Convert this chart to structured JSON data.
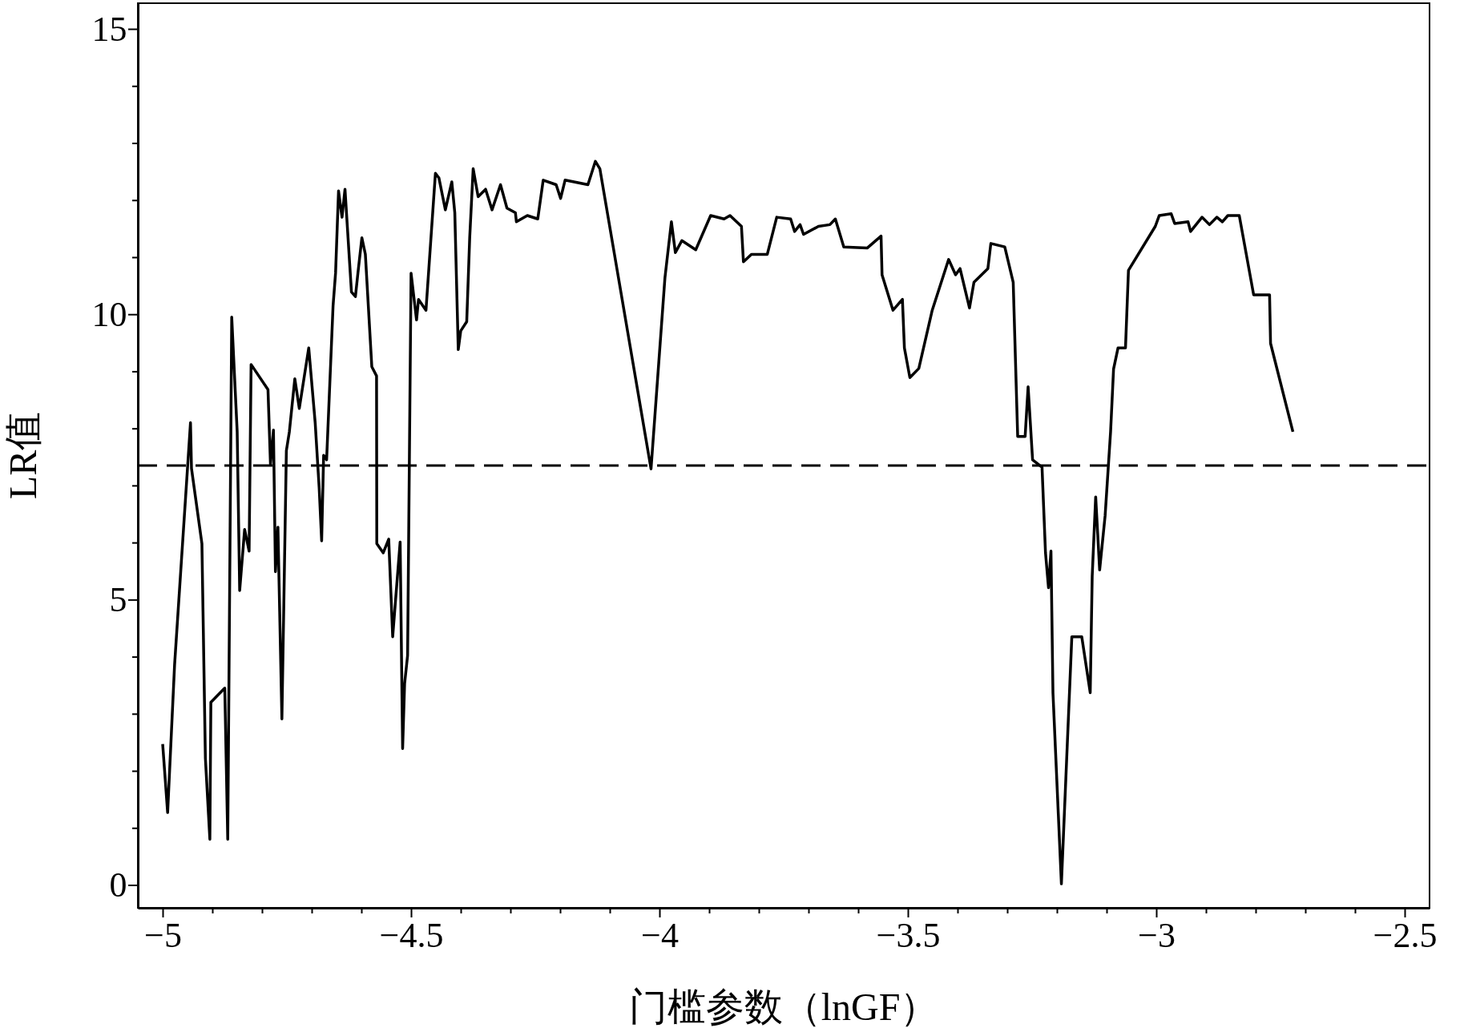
{
  "chart_data": {
    "type": "line",
    "xlabel": "门槛参数（lnGF）",
    "ylabel": "LR值",
    "xlim": [
      -5.05,
      -2.45
    ],
    "ylim": [
      -0.4,
      15.45
    ],
    "xticks": [
      {
        "value": -5,
        "label": "−5"
      },
      {
        "value": -4.9,
        "label": null
      },
      {
        "value": -4.8,
        "label": null
      },
      {
        "value": -4.7,
        "label": null
      },
      {
        "value": -4.6,
        "label": null
      },
      {
        "value": -4.5,
        "label": "−4.5"
      },
      {
        "value": -4.4,
        "label": null
      },
      {
        "value": -4.3,
        "label": null
      },
      {
        "value": -4.2,
        "label": null
      },
      {
        "value": -4.1,
        "label": null
      },
      {
        "value": -4,
        "label": "−4"
      },
      {
        "value": -3.9,
        "label": null
      },
      {
        "value": -3.8,
        "label": null
      },
      {
        "value": -3.7,
        "label": null
      },
      {
        "value": -3.6,
        "label": null
      },
      {
        "value": -3.5,
        "label": "−3.5"
      },
      {
        "value": -3.4,
        "label": null
      },
      {
        "value": -3.3,
        "label": null
      },
      {
        "value": -3.2,
        "label": null
      },
      {
        "value": -3.1,
        "label": null
      },
      {
        "value": -3,
        "label": "−3"
      },
      {
        "value": -2.9,
        "label": null
      },
      {
        "value": -2.8,
        "label": null
      },
      {
        "value": -2.7,
        "label": null
      },
      {
        "value": -2.6,
        "label": null
      },
      {
        "value": -2.5,
        "label": "−2.5"
      }
    ],
    "yticks": [
      0,
      {
        "value": 1,
        "label": null
      },
      {
        "value": 2,
        "label": null
      },
      {
        "value": 3,
        "label": null
      },
      {
        "value": 4,
        "label": null
      },
      5,
      {
        "value": 6,
        "label": null
      },
      {
        "value": 7,
        "label": null
      },
      {
        "value": 8,
        "label": null
      },
      {
        "value": 9,
        "label": null
      },
      10,
      {
        "value": 11,
        "label": null
      },
      {
        "value": 12,
        "label": null
      },
      {
        "value": 13,
        "label": null
      },
      {
        "value": 14,
        "label": null
      },
      15
    ],
    "grid": false,
    "marker": "none",
    "line_style": "solid",
    "ref_lines": [
      {
        "axis": "y",
        "value": 7.35,
        "line_style": "dashed",
        "color": "#000000"
      }
    ],
    "series": [
      {
        "color": "#000000",
        "x": [
          -5.0,
          -4.99,
          -4.976,
          -4.944,
          -4.942,
          -4.921,
          -4.914,
          -4.905,
          -4.903,
          -4.875,
          -4.869,
          -4.861,
          -4.85,
          -4.845,
          -4.835,
          -4.826,
          -4.822,
          -4.788,
          -4.783,
          -4.777,
          -4.773,
          -4.768,
          -4.76,
          -4.751,
          -4.745,
          -4.734,
          -4.725,
          -4.706,
          -4.693,
          -4.685,
          -4.68,
          -4.676,
          -4.67,
          -4.657,
          -4.652,
          -4.646,
          -4.639,
          -4.633,
          -4.62,
          -4.612,
          -4.607,
          -4.599,
          -4.592,
          -4.579,
          -4.5695,
          -4.569,
          -4.556,
          -4.545,
          -4.537,
          -4.522,
          -4.517,
          -4.513,
          -4.507,
          -4.5,
          -4.489,
          -4.485,
          -4.47,
          -4.451,
          -4.444,
          -4.431,
          -4.418,
          -4.412,
          -4.405,
          -4.4,
          -4.388,
          -4.382,
          -4.375,
          -4.365,
          -4.35,
          -4.337,
          -4.32,
          -4.307,
          -4.29,
          -4.288,
          -4.266,
          -4.245,
          -4.234,
          -4.208,
          -4.199,
          -4.19,
          -4.144,
          -4.129,
          -4.12,
          -4.017,
          -3.989,
          -3.976,
          -3.968,
          -3.955,
          -3.927,
          -3.897,
          -3.87,
          -3.858,
          -3.835,
          -3.831,
          -3.815,
          -3.783,
          -3.764,
          -3.736,
          -3.728,
          -3.717,
          -3.71,
          -3.68,
          -3.657,
          -3.646,
          -3.629,
          -3.582,
          -3.554,
          -3.552,
          -3.53,
          -3.511,
          -3.507,
          -3.496,
          -3.478,
          -3.451,
          -3.418,
          -3.404,
          -3.395,
          -3.376,
          -3.367,
          -3.339,
          -3.333,
          -3.305,
          -3.288,
          -3.279,
          -3.264,
          -3.258,
          -3.249,
          -3.23,
          -3.223,
          -3.217,
          -3.212,
          -3.208,
          -3.191,
          -3.17,
          -3.15,
          -3.133,
          -3.129,
          -3.122,
          -3.114,
          -3.103,
          -3.092,
          -3.086,
          -3.077,
          -3.062,
          -3.056,
          -3.002,
          -2.994,
          -2.97,
          -2.963,
          -2.936,
          -2.931,
          -2.908,
          -2.893,
          -2.878,
          -2.867,
          -2.856,
          -2.833,
          -2.804,
          -2.772,
          -2.77,
          -2.725
        ],
        "values": [
          2.47,
          1.27,
          3.86,
          8.1,
          7.3,
          5.98,
          2.22,
          0.8,
          3.2,
          3.45,
          0.8,
          9.95,
          7.94,
          5.16,
          6.23,
          5.85,
          9.12,
          8.68,
          7.37,
          7.97,
          5.49,
          6.27,
          2.91,
          7.61,
          7.94,
          8.87,
          8.35,
          9.41,
          8.1,
          6.96,
          6.03,
          7.53,
          7.45,
          10.15,
          10.72,
          12.16,
          11.7,
          12.19,
          10.39,
          10.31,
          10.72,
          11.34,
          11.05,
          9.08,
          8.92,
          5.98,
          5.82,
          6.06,
          4.35,
          6.01,
          2.39,
          3.53,
          4.02,
          10.72,
          9.9,
          10.26,
          10.07,
          12.47,
          12.39,
          11.83,
          12.32,
          11.78,
          9.38,
          9.71,
          9.87,
          11.34,
          12.55,
          12.06,
          12.19,
          11.83,
          12.27,
          11.86,
          11.78,
          11.62,
          11.73,
          11.67,
          12.35,
          12.27,
          12.03,
          12.35,
          12.27,
          12.68,
          12.55,
          7.29,
          10.64,
          11.62,
          11.08,
          11.29,
          11.13,
          11.73,
          11.67,
          11.73,
          11.54,
          10.92,
          11.05,
          11.05,
          11.7,
          11.67,
          11.45,
          11.57,
          11.4,
          11.54,
          11.57,
          11.67,
          11.18,
          11.16,
          11.37,
          10.69,
          10.07,
          10.26,
          9.41,
          8.89,
          9.05,
          10.07,
          10.96,
          10.69,
          10.8,
          10.11,
          10.56,
          10.8,
          11.24,
          11.18,
          10.56,
          7.86,
          7.86,
          8.73,
          7.45,
          7.32,
          5.82,
          5.21,
          5.85,
          3.37,
          0.02,
          4.35,
          4.35,
          3.37,
          5.41,
          6.8,
          5.52,
          6.47,
          7.94,
          9.04,
          9.41,
          9.41,
          10.77,
          11.54,
          11.73,
          11.76,
          11.59,
          11.62,
          11.45,
          11.7,
          11.57,
          11.7,
          11.62,
          11.73,
          11.73,
          10.34,
          10.34,
          9.49,
          7.94
        ]
      }
    ]
  }
}
